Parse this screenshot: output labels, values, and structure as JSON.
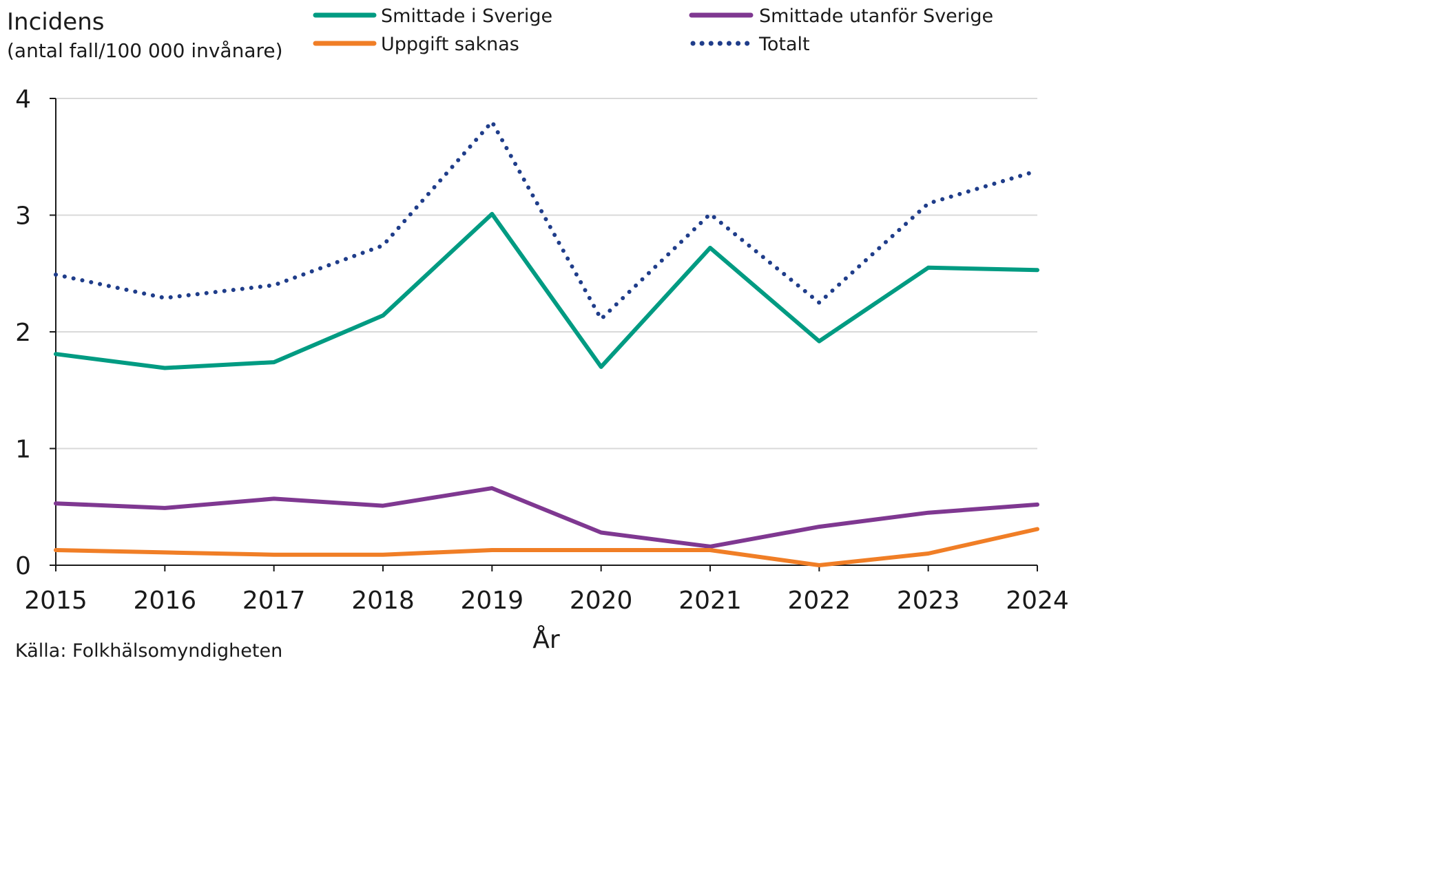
{
  "chart_data": {
    "type": "line",
    "title": "",
    "ylabel": "Incidens",
    "ylabel_sub": "(antal fall/100 000 invånare)",
    "xlabel": "År",
    "source": "Källa: Folkhälsomyndigheten",
    "x": [
      2015,
      2016,
      2017,
      2018,
      2019,
      2020,
      2021,
      2022,
      2023,
      2024
    ],
    "x_tick_labels": [
      "2015",
      "2016",
      "2017",
      "2018",
      "2019",
      "2020",
      "2021",
      "2022",
      "2023",
      "2024"
    ],
    "ylim": [
      0,
      4
    ],
    "y_ticks": [
      0,
      1,
      2,
      3,
      4
    ],
    "y_tick_labels": [
      "0",
      "1",
      "2",
      "3",
      "4"
    ],
    "grid": true,
    "legend_position": "top",
    "series": [
      {
        "name": "Smittade i Sverige",
        "color": "#009B82",
        "style": "solid",
        "values": [
          1.81,
          1.69,
          1.74,
          2.14,
          3.01,
          1.7,
          2.72,
          1.92,
          2.55,
          2.53
        ]
      },
      {
        "name": "Smittade utanför Sverige",
        "color": "#7F3891",
        "style": "solid",
        "values": [
          0.53,
          0.49,
          0.57,
          0.51,
          0.66,
          0.28,
          0.16,
          0.33,
          0.45,
          0.52
        ]
      },
      {
        "name": "Uppgift saknas",
        "color": "#F07E26",
        "style": "solid",
        "values": [
          0.13,
          0.11,
          0.09,
          0.09,
          0.13,
          0.13,
          0.13,
          0.0,
          0.1,
          0.31
        ]
      },
      {
        "name": "Totalt",
        "color": "#1F3D8A",
        "style": "dotted",
        "values": [
          2.49,
          2.29,
          2.4,
          2.74,
          3.8,
          2.11,
          3.01,
          2.25,
          3.1,
          3.38
        ]
      }
    ]
  }
}
